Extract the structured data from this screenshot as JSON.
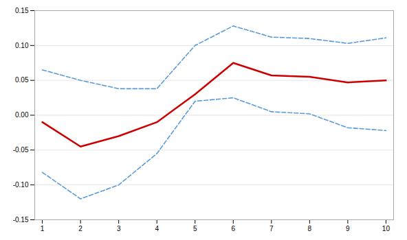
{
  "chart_data": {
    "type": "line",
    "x": [
      1,
      2,
      3,
      4,
      5,
      6,
      7,
      8,
      9,
      10
    ],
    "series": [
      {
        "color": "#5b9bd5",
        "line_style": "dashed",
        "values": [
          0.065,
          0.05,
          0.038,
          0.038,
          0.1,
          0.128,
          0.112,
          0.11,
          0.103,
          0.111
        ]
      },
      {
        "color": "#5b9bd5",
        "line_style": "dashed",
        "values": [
          -0.082,
          -0.12,
          -0.1,
          -0.055,
          0.02,
          0.025,
          0.005,
          0.002,
          -0.018,
          -0.022
        ]
      },
      {
        "color": "#cc0000",
        "line_style": "solid",
        "values": [
          -0.01,
          -0.045,
          -0.03,
          -0.01,
          0.03,
          0.075,
          0.057,
          0.055,
          0.047,
          0.05
        ]
      }
    ],
    "xlim": [
      0.8,
      10.2
    ],
    "xticks": [
      1,
      2,
      3,
      4,
      5,
      6,
      7,
      8,
      9,
      10
    ],
    "ylim": [
      -0.15,
      0.15
    ],
    "yticks": [
      -0.15,
      {
        "value": -0.1,
        "label": "-0.10"
      },
      -0.05,
      {
        "value": 0,
        "label": "0.00"
      },
      0.05,
      {
        "value": 0.1,
        "label": "0.10"
      },
      0.15
    ],
    "grid": "y"
  }
}
